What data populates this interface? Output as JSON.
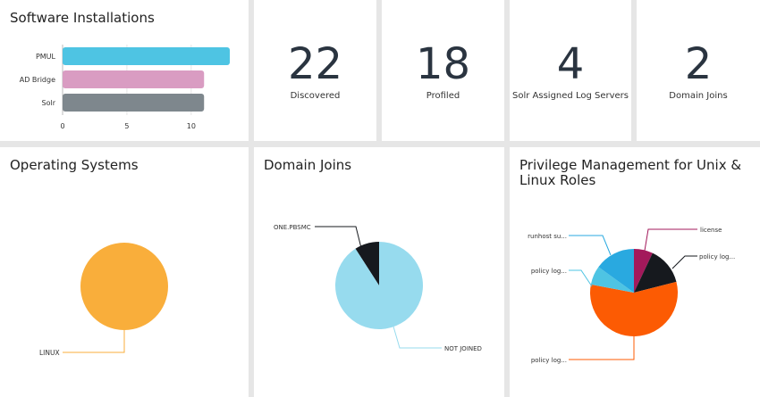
{
  "software_installations": {
    "title": "Software Installations",
    "chart_data": {
      "type": "bar",
      "orientation": "horizontal",
      "categories": [
        "PMUL",
        "AD Bridge",
        "Solr"
      ],
      "values": [
        13,
        11,
        11
      ],
      "colors": [
        "#4ec4e3",
        "#d99cc2",
        "#7e878d"
      ],
      "xlim": [
        0,
        13
      ],
      "xticks": [
        0,
        5,
        10
      ],
      "grid": true
    }
  },
  "stats": [
    {
      "value": "22",
      "label": "Discovered"
    },
    {
      "value": "18",
      "label": "Profiled"
    },
    {
      "value": "4",
      "label": "Solr Assigned Log Servers"
    },
    {
      "value": "2",
      "label": "Domain Joins"
    }
  ],
  "operating_systems": {
    "title": "Operating Systems",
    "chart_data": {
      "type": "pie",
      "labels": [
        "LINUX"
      ],
      "values": [
        1
      ],
      "colors": [
        "#f9ae3b"
      ]
    }
  },
  "domain_joins": {
    "title": "Domain Joins",
    "chart_data": {
      "type": "pie",
      "labels": [
        "ONE.PBSMC",
        "NOT JOINED"
      ],
      "values": [
        2,
        20
      ],
      "colors": [
        "#16191e",
        "#97dbee"
      ]
    }
  },
  "privilege_management": {
    "title": "Privilege Management for Unix & Linux Roles",
    "chart_data": {
      "type": "pie",
      "labels": [
        "license",
        "policy log...",
        "policy log...",
        "policy log...",
        "runhost su..."
      ],
      "values": [
        7,
        14,
        57,
        7,
        15
      ],
      "colors": [
        "#a3195b",
        "#16191e",
        "#fc5b03",
        "#4ec4e3",
        "#29a9e0"
      ]
    }
  }
}
